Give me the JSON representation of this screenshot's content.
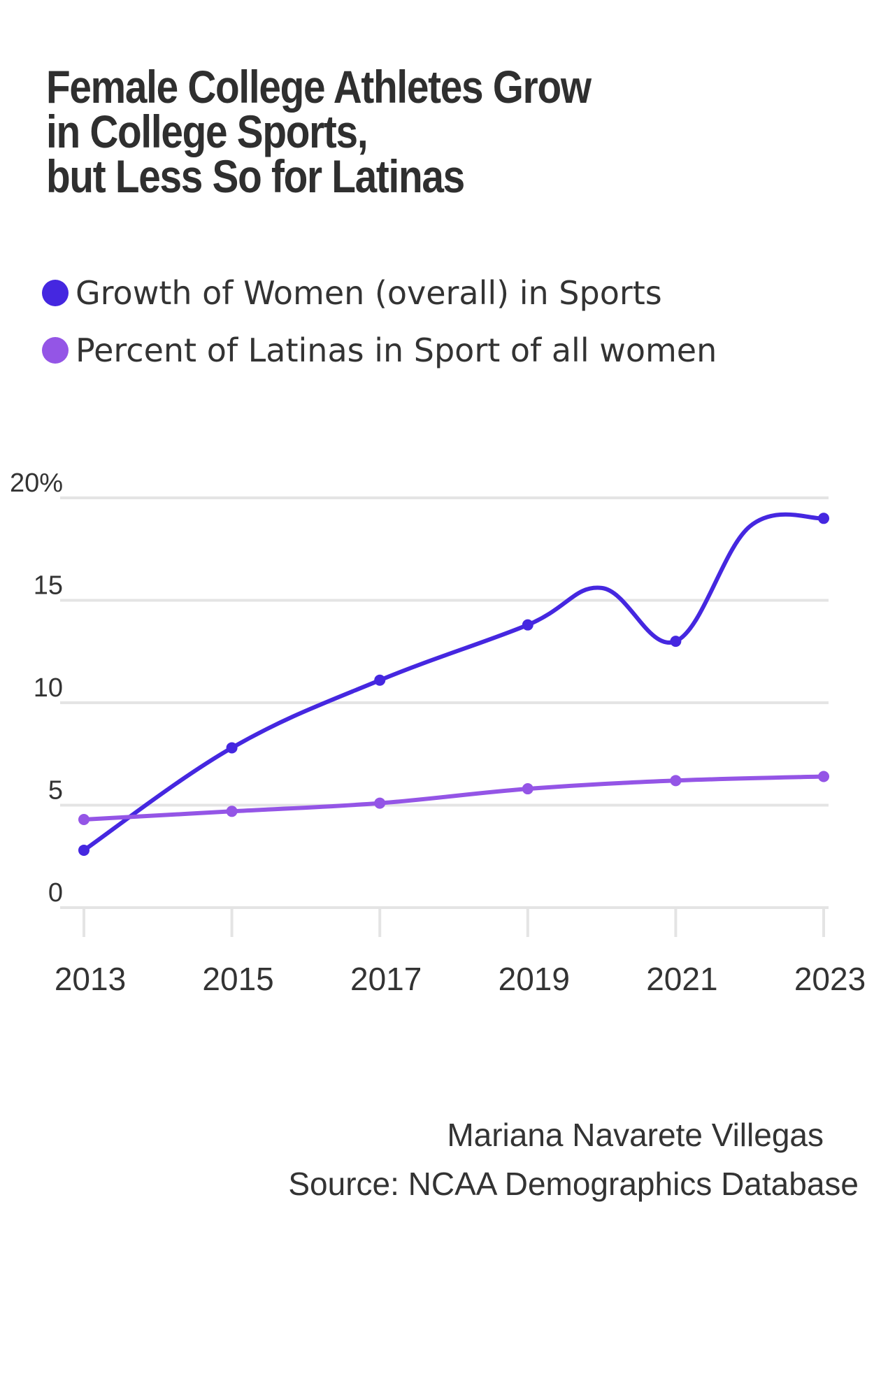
{
  "title_lines": [
    "Female College Athletes Grow",
    "in College Sports,",
    "but Less So for Latinas"
  ],
  "legend": [
    {
      "label": "Growth of Women (overall) in Sports",
      "color": "#4527e0"
    },
    {
      "label": "Percent of Latinas in Sport of all women",
      "color": "#9455e6"
    }
  ],
  "credits": {
    "author": "Mariana Navarete Villegas",
    "source": "Source: NCAA Demographics Database"
  },
  "chart_data": {
    "type": "line",
    "x": [
      2013,
      2015,
      2017,
      2019,
      2020,
      2021,
      2022,
      2023
    ],
    "xticks": [
      "2013",
      "2015",
      "2017",
      "2019",
      "2021",
      "2023"
    ],
    "xlim": [
      2013,
      2023
    ],
    "yticks": [
      "20%",
      "15",
      "10",
      "5",
      "0"
    ],
    "ylim": [
      0,
      20
    ],
    "grid": true,
    "legend_position": "top-left",
    "series": [
      {
        "name": "Growth of Women (overall) in Sports",
        "color": "#4527e0",
        "points": [
          [
            2013,
            2.8
          ],
          [
            2015,
            7.8
          ],
          [
            2017,
            11.1
          ],
          [
            2019,
            13.8
          ],
          [
            2020,
            15.6
          ],
          [
            2021,
            13.0
          ],
          [
            2022,
            18.6
          ],
          [
            2023,
            19.0
          ]
        ],
        "markers": [
          2013,
          2015,
          2017,
          2019,
          2021,
          2023
        ]
      },
      {
        "name": "Percent of Latinas in Sport of all women",
        "color": "#9455e6",
        "points": [
          [
            2013,
            4.3
          ],
          [
            2015,
            4.7
          ],
          [
            2017,
            5.1
          ],
          [
            2019,
            5.8
          ],
          [
            2021,
            6.2
          ],
          [
            2023,
            6.4
          ]
        ],
        "markers": [
          2013,
          2015,
          2017,
          2019,
          2021,
          2023
        ]
      }
    ]
  }
}
